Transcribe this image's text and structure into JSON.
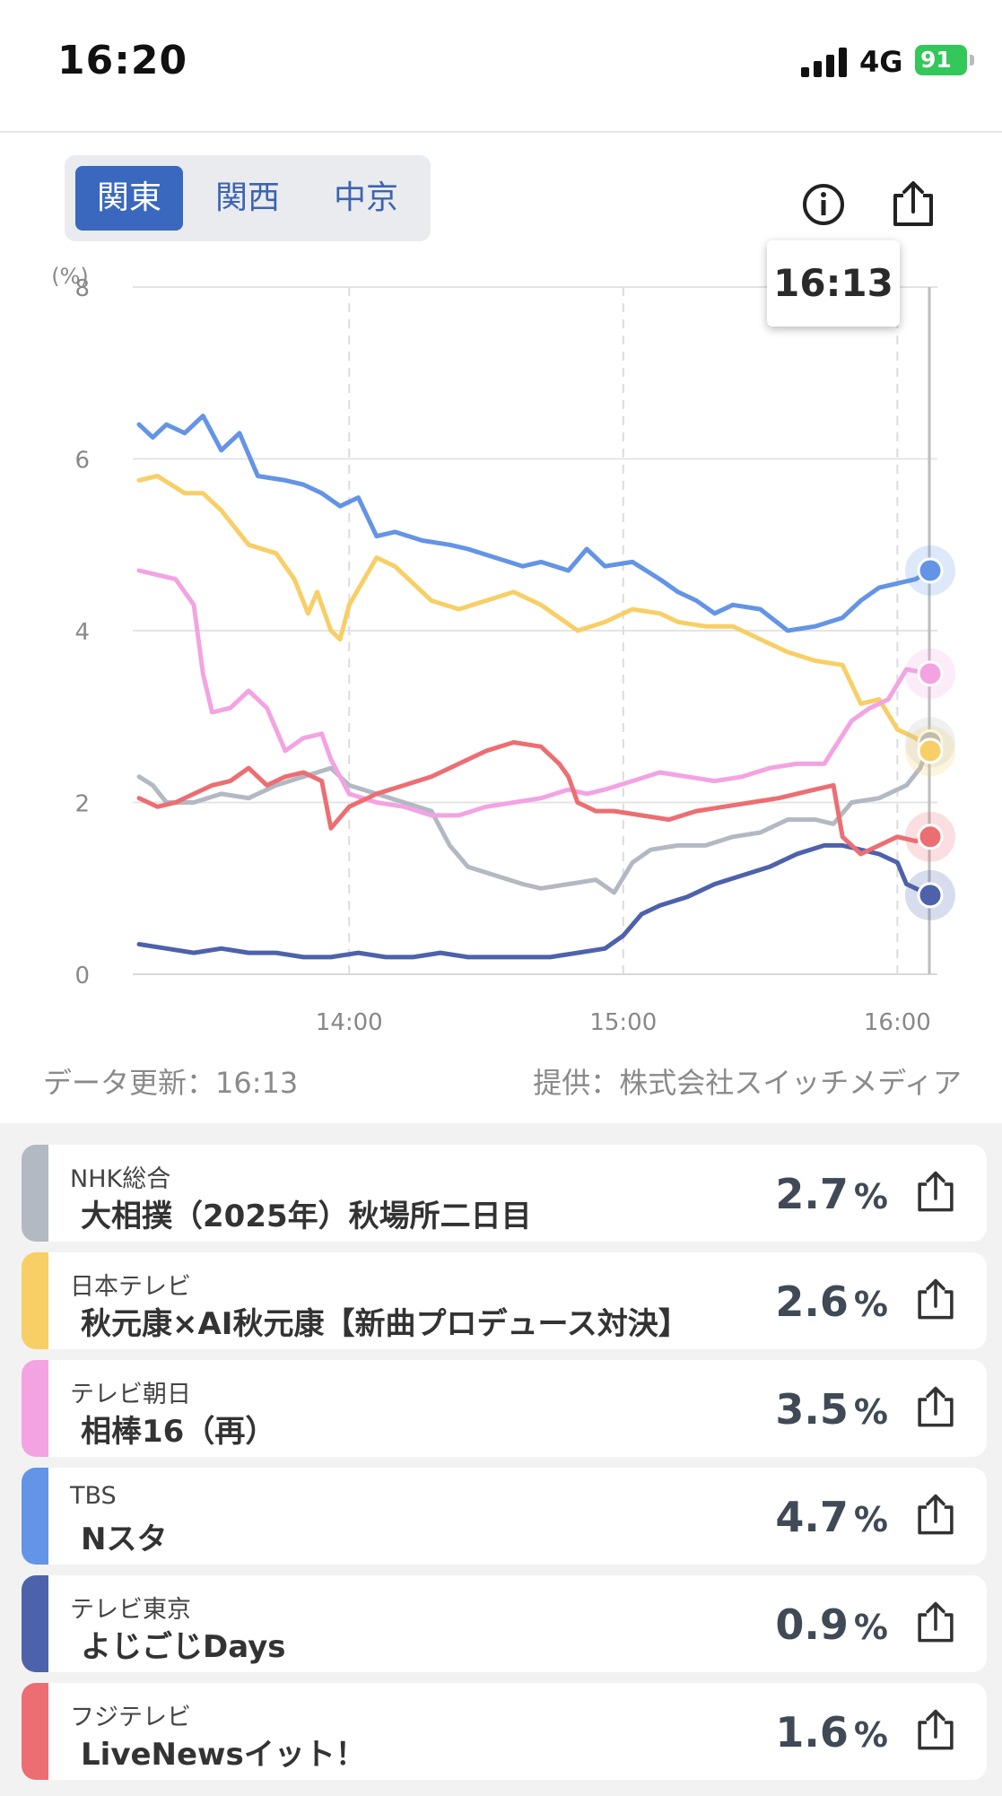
{
  "status_bar": {
    "time": "16:20",
    "network": "4G",
    "battery": "91"
  },
  "region_tabs": [
    {
      "label": "関東",
      "active": true
    },
    {
      "label": "関西",
      "active": false
    },
    {
      "label": "中京",
      "active": false
    }
  ],
  "icons": {
    "info": "info-circle-icon",
    "share": "share-icon"
  },
  "tooltip": {
    "time": "16:13"
  },
  "chart_data": {
    "type": "line",
    "ylabel": "(%)",
    "ylim": [
      0,
      8
    ],
    "yticks": [
      "0",
      "2",
      "4",
      "6",
      "8"
    ],
    "xticks": [
      {
        "label": "14:00",
        "minute": 840
      },
      {
        "label": "15:00",
        "minute": 900
      },
      {
        "label": "16:00",
        "minute": 960
      }
    ],
    "x_range_minutes": [
      794,
      967
    ],
    "grid": true,
    "series": [
      {
        "name": "NHK総合",
        "color": "#b3b9c2",
        "points": [
          [
            794,
            2.3
          ],
          [
            797,
            2.2
          ],
          [
            800,
            2.0
          ],
          [
            806,
            2.0
          ],
          [
            812,
            2.1
          ],
          [
            818,
            2.05
          ],
          [
            824,
            2.2
          ],
          [
            830,
            2.3
          ],
          [
            836,
            2.4
          ],
          [
            840,
            2.2
          ],
          [
            846,
            2.1
          ],
          [
            852,
            2.0
          ],
          [
            858,
            1.9
          ],
          [
            862,
            1.5
          ],
          [
            866,
            1.25
          ],
          [
            872,
            1.15
          ],
          [
            878,
            1.05
          ],
          [
            882,
            1.0
          ],
          [
            888,
            1.05
          ],
          [
            894,
            1.1
          ],
          [
            898,
            0.95
          ],
          [
            902,
            1.3
          ],
          [
            906,
            1.45
          ],
          [
            912,
            1.5
          ],
          [
            918,
            1.5
          ],
          [
            924,
            1.6
          ],
          [
            930,
            1.65
          ],
          [
            936,
            1.8
          ],
          [
            942,
            1.8
          ],
          [
            946,
            1.75
          ],
          [
            950,
            2.0
          ],
          [
            956,
            2.05
          ],
          [
            962,
            2.2
          ],
          [
            965,
            2.4
          ],
          [
            967,
            2.7
          ]
        ]
      },
      {
        "name": "日本テレビ",
        "color": "#f8cf66",
        "points": [
          [
            794,
            5.75
          ],
          [
            798,
            5.8
          ],
          [
            804,
            5.6
          ],
          [
            808,
            5.6
          ],
          [
            812,
            5.4
          ],
          [
            818,
            5.0
          ],
          [
            824,
            4.9
          ],
          [
            828,
            4.6
          ],
          [
            831,
            4.2
          ],
          [
            833,
            4.45
          ],
          [
            836,
            4.0
          ],
          [
            838,
            3.9
          ],
          [
            840,
            4.3
          ],
          [
            846,
            4.85
          ],
          [
            850,
            4.75
          ],
          [
            854,
            4.55
          ],
          [
            858,
            4.35
          ],
          [
            864,
            4.25
          ],
          [
            870,
            4.35
          ],
          [
            876,
            4.45
          ],
          [
            882,
            4.3
          ],
          [
            886,
            4.15
          ],
          [
            890,
            4.0
          ],
          [
            896,
            4.1
          ],
          [
            902,
            4.25
          ],
          [
            908,
            4.2
          ],
          [
            912,
            4.1
          ],
          [
            918,
            4.05
          ],
          [
            924,
            4.05
          ],
          [
            930,
            3.9
          ],
          [
            936,
            3.75
          ],
          [
            942,
            3.65
          ],
          [
            948,
            3.6
          ],
          [
            952,
            3.15
          ],
          [
            956,
            3.2
          ],
          [
            960,
            2.85
          ],
          [
            964,
            2.75
          ],
          [
            967,
            2.6
          ]
        ]
      },
      {
        "name": "テレビ朝日",
        "color": "#f3a3e2",
        "points": [
          [
            794,
            4.7
          ],
          [
            798,
            4.65
          ],
          [
            802,
            4.6
          ],
          [
            806,
            4.3
          ],
          [
            808,
            3.5
          ],
          [
            810,
            3.05
          ],
          [
            814,
            3.1
          ],
          [
            818,
            3.3
          ],
          [
            822,
            3.1
          ],
          [
            826,
            2.6
          ],
          [
            830,
            2.75
          ],
          [
            834,
            2.8
          ],
          [
            836,
            2.5
          ],
          [
            840,
            2.1
          ],
          [
            846,
            2.0
          ],
          [
            852,
            1.95
          ],
          [
            858,
            1.85
          ],
          [
            864,
            1.85
          ],
          [
            870,
            1.95
          ],
          [
            876,
            2.0
          ],
          [
            882,
            2.05
          ],
          [
            888,
            2.15
          ],
          [
            892,
            2.1
          ],
          [
            896,
            2.15
          ],
          [
            902,
            2.25
          ],
          [
            908,
            2.35
          ],
          [
            914,
            2.3
          ],
          [
            920,
            2.25
          ],
          [
            926,
            2.3
          ],
          [
            932,
            2.4
          ],
          [
            938,
            2.45
          ],
          [
            944,
            2.45
          ],
          [
            950,
            2.95
          ],
          [
            954,
            3.1
          ],
          [
            958,
            3.2
          ],
          [
            962,
            3.55
          ],
          [
            967,
            3.5
          ]
        ]
      },
      {
        "name": "TBS",
        "color": "#6394e6",
        "points": [
          [
            794,
            6.4
          ],
          [
            797,
            6.25
          ],
          [
            800,
            6.4
          ],
          [
            804,
            6.3
          ],
          [
            808,
            6.5
          ],
          [
            812,
            6.1
          ],
          [
            816,
            6.3
          ],
          [
            820,
            5.8
          ],
          [
            826,
            5.75
          ],
          [
            830,
            5.7
          ],
          [
            834,
            5.6
          ],
          [
            838,
            5.45
          ],
          [
            842,
            5.55
          ],
          [
            846,
            5.1
          ],
          [
            850,
            5.15
          ],
          [
            856,
            5.05
          ],
          [
            862,
            5.0
          ],
          [
            866,
            4.95
          ],
          [
            872,
            4.85
          ],
          [
            878,
            4.75
          ],
          [
            882,
            4.8
          ],
          [
            888,
            4.7
          ],
          [
            892,
            4.95
          ],
          [
            896,
            4.75
          ],
          [
            902,
            4.8
          ],
          [
            908,
            4.6
          ],
          [
            912,
            4.45
          ],
          [
            916,
            4.35
          ],
          [
            920,
            4.2
          ],
          [
            924,
            4.3
          ],
          [
            930,
            4.25
          ],
          [
            936,
            4.0
          ],
          [
            942,
            4.05
          ],
          [
            948,
            4.15
          ],
          [
            952,
            4.35
          ],
          [
            956,
            4.5
          ],
          [
            960,
            4.55
          ],
          [
            964,
            4.6
          ],
          [
            967,
            4.7
          ]
        ]
      },
      {
        "name": "テレビ東京",
        "color": "#4d62ab",
        "points": [
          [
            794,
            0.35
          ],
          [
            800,
            0.3
          ],
          [
            806,
            0.25
          ],
          [
            812,
            0.3
          ],
          [
            818,
            0.25
          ],
          [
            824,
            0.25
          ],
          [
            830,
            0.2
          ],
          [
            836,
            0.2
          ],
          [
            842,
            0.25
          ],
          [
            848,
            0.2
          ],
          [
            854,
            0.2
          ],
          [
            860,
            0.25
          ],
          [
            866,
            0.2
          ],
          [
            872,
            0.2
          ],
          [
            878,
            0.2
          ],
          [
            884,
            0.2
          ],
          [
            890,
            0.25
          ],
          [
            896,
            0.3
          ],
          [
            900,
            0.45
          ],
          [
            904,
            0.7
          ],
          [
            908,
            0.8
          ],
          [
            914,
            0.9
          ],
          [
            920,
            1.05
          ],
          [
            926,
            1.15
          ],
          [
            932,
            1.25
          ],
          [
            938,
            1.4
          ],
          [
            944,
            1.5
          ],
          [
            948,
            1.5
          ],
          [
            952,
            1.45
          ],
          [
            956,
            1.4
          ],
          [
            960,
            1.3
          ],
          [
            962,
            1.05
          ],
          [
            966,
            0.95
          ],
          [
            967,
            0.92
          ]
        ]
      },
      {
        "name": "フジテレビ",
        "color": "#ec6e72",
        "points": [
          [
            794,
            2.05
          ],
          [
            798,
            1.95
          ],
          [
            802,
            2.0
          ],
          [
            806,
            2.1
          ],
          [
            810,
            2.2
          ],
          [
            814,
            2.25
          ],
          [
            818,
            2.4
          ],
          [
            822,
            2.2
          ],
          [
            826,
            2.3
          ],
          [
            830,
            2.35
          ],
          [
            834,
            2.25
          ],
          [
            836,
            1.7
          ],
          [
            840,
            1.95
          ],
          [
            846,
            2.1
          ],
          [
            852,
            2.2
          ],
          [
            858,
            2.3
          ],
          [
            864,
            2.45
          ],
          [
            870,
            2.6
          ],
          [
            876,
            2.7
          ],
          [
            882,
            2.65
          ],
          [
            886,
            2.45
          ],
          [
            888,
            2.3
          ],
          [
            890,
            2.0
          ],
          [
            894,
            1.9
          ],
          [
            898,
            1.9
          ],
          [
            904,
            1.85
          ],
          [
            910,
            1.8
          ],
          [
            916,
            1.9
          ],
          [
            922,
            1.95
          ],
          [
            928,
            2.0
          ],
          [
            934,
            2.05
          ],
          [
            938,
            2.1
          ],
          [
            942,
            2.15
          ],
          [
            946,
            2.2
          ],
          [
            948,
            1.6
          ],
          [
            952,
            1.4
          ],
          [
            956,
            1.5
          ],
          [
            960,
            1.6
          ],
          [
            964,
            1.55
          ],
          [
            967,
            1.6
          ]
        ]
      }
    ]
  },
  "footer": {
    "data_update": "データ更新：16:13",
    "provider": "提供：株式会社スイッチメディア"
  },
  "channels": [
    {
      "channel": "NHK総合",
      "program": "大相撲（2025年）秋場所二日目",
      "rating": "2.7",
      "unit": "%",
      "color": "#b3b9c2"
    },
    {
      "channel": "日本テレビ",
      "program": "秋元康×AI秋元康【新曲プロデュース対決】",
      "rating": "2.6",
      "unit": "%",
      "color": "#f8cf66"
    },
    {
      "channel": "テレビ朝日",
      "program": "相棒16（再）",
      "rating": "3.5",
      "unit": "%",
      "color": "#f3a3e2"
    },
    {
      "channel": "TBS",
      "program": "Nスタ",
      "rating": "4.7",
      "unit": "%",
      "color": "#6394e6"
    },
    {
      "channel": "テレビ東京",
      "program": "よじごじDays",
      "rating": "0.9",
      "unit": "%",
      "color": "#4d62ab"
    },
    {
      "channel": "フジテレビ",
      "program": "LiveNewsイット！",
      "rating": "1.6",
      "unit": "%",
      "color": "#ec6e72"
    }
  ]
}
